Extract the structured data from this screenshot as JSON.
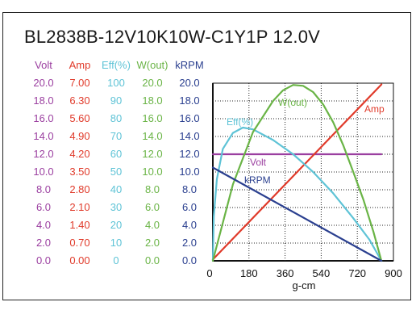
{
  "title": "BL2838B-12V10K10W-C1Y1P   12.0V",
  "colors": {
    "volt": "#9b3fa0",
    "amp": "#e03a2a",
    "eff": "#5ec3d6",
    "wout": "#6ab446",
    "krpm": "#2a3f8f",
    "axis": "#111111",
    "grid": "#222222"
  },
  "columns": [
    {
      "key": "volt",
      "header": "Volt",
      "labels": [
        "20.0",
        "18.0",
        "16.0",
        "14.0",
        "12.0",
        "10.0",
        "8.0",
        "6.0",
        "4.0",
        "2.0",
        "0.0"
      ]
    },
    {
      "key": "amp",
      "header": "Amp",
      "labels": [
        "7.00",
        "6.30",
        "5.60",
        "4.90",
        "4.20",
        "3.50",
        "2.80",
        "2.10",
        "1.40",
        "0.70",
        "0.00"
      ]
    },
    {
      "key": "eff",
      "header": "Eff(%)",
      "labels": [
        "100",
        "90",
        "80",
        "70",
        "60",
        "50",
        "40",
        "30",
        "20",
        "10",
        "0"
      ]
    },
    {
      "key": "wout",
      "header": "W(out)",
      "labels": [
        "20.0",
        "18.0",
        "16.0",
        "14.0",
        "12.0",
        "10.0",
        "8.0",
        "6.0",
        "4.0",
        "2.0",
        "0.0"
      ]
    },
    {
      "key": "krpm",
      "header": "kRPM",
      "labels": [
        "20.0",
        "18.0",
        "16.0",
        "14.0",
        "12.0",
        "10.0",
        "8.0",
        "6.0",
        "4.0",
        "2.0",
        "0.0"
      ]
    }
  ],
  "chart_data": {
    "type": "line",
    "xlabel": "g-cm",
    "xlim": [
      0,
      900
    ],
    "xticks": [
      "0",
      "180",
      "360",
      "540",
      "720",
      "900"
    ],
    "grid": true,
    "series": [
      {
        "name": "Volt",
        "key": "volt",
        "scale_max": 20.0,
        "x": [
          0,
          840
        ],
        "y": [
          12.0,
          12.0
        ]
      },
      {
        "name": "Amp",
        "key": "amp",
        "scale_max": 7.0,
        "x": [
          0,
          840
        ],
        "y": [
          0.05,
          6.95
        ]
      },
      {
        "name": "Eff(%)",
        "key": "eff",
        "scale_max": 100,
        "x": [
          0,
          5,
          20,
          50,
          100,
          150,
          200,
          300,
          400,
          500,
          600,
          700,
          780,
          840
        ],
        "y": [
          0,
          25,
          46,
          63,
          72,
          75,
          74,
          68,
          60,
          50,
          38,
          24,
          12,
          0
        ]
      },
      {
        "name": "W(out)",
        "key": "wout",
        "scale_max": 20.0,
        "x": [
          0,
          100,
          200,
          300,
          350,
          400,
          450,
          500,
          550,
          600,
          650,
          700,
          750,
          800,
          840
        ],
        "y": [
          0,
          8.6,
          14.5,
          18.0,
          19.2,
          19.8,
          19.7,
          19.0,
          17.6,
          15.6,
          13.0,
          10.0,
          6.9,
          3.3,
          0
        ]
      },
      {
        "name": "kRPM",
        "key": "krpm",
        "scale_max": 20.0,
        "x": [
          0,
          840
        ],
        "y": [
          10.5,
          0
        ]
      }
    ],
    "annotations": [
      {
        "text": "W(out)",
        "key": "wout"
      },
      {
        "text": "Amp",
        "key": "amp"
      },
      {
        "text": "Eff(%)",
        "key": "eff"
      },
      {
        "text": "Volt",
        "key": "volt"
      },
      {
        "text": "kRPM",
        "key": "krpm"
      }
    ]
  }
}
